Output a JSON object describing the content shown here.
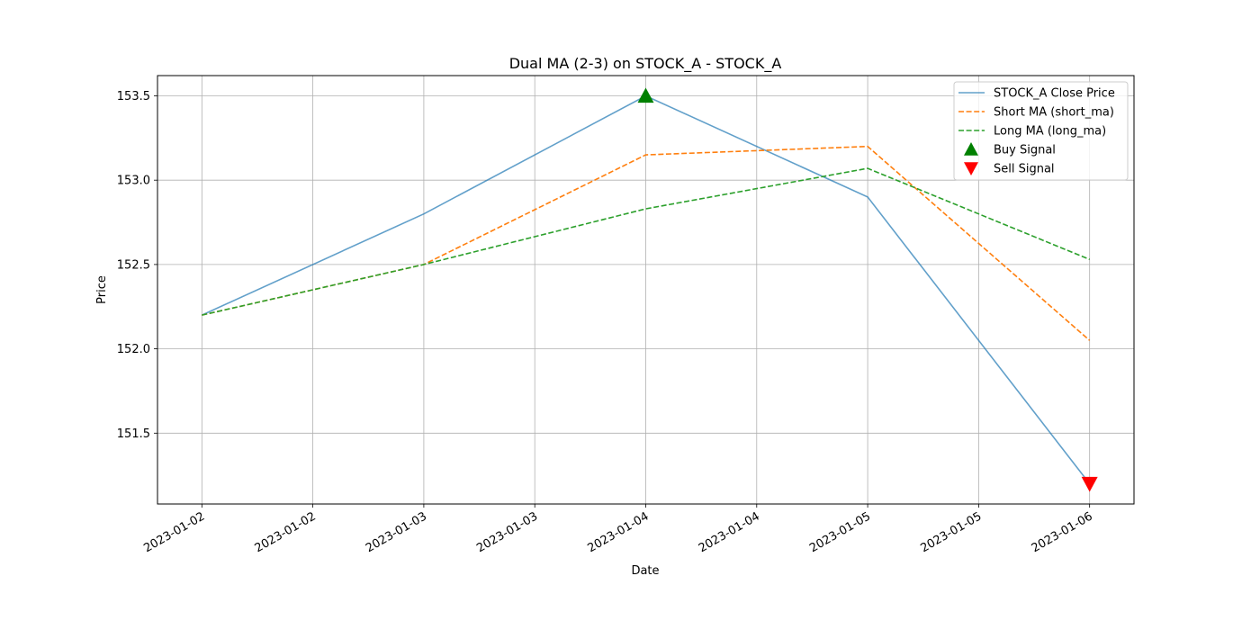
{
  "chart_data": {
    "type": "line",
    "title": "Dual MA (2-3) on STOCK_A - STOCK_A",
    "xlabel": "Date",
    "ylabel": "Price",
    "x": [
      0,
      1,
      2,
      3,
      4
    ],
    "x_tick_positions": [
      0,
      0.5,
      1,
      1.5,
      2,
      2.5,
      3,
      3.5,
      4
    ],
    "x_tick_labels": [
      "2023-01-02",
      "2023-01-02",
      "2023-01-03",
      "2023-01-03",
      "2023-01-04",
      "2023-01-04",
      "2023-01-05",
      "2023-01-05",
      "2023-01-06"
    ],
    "xlim": [
      -0.2,
      4.2
    ],
    "ylim": [
      151.08,
      153.62
    ],
    "y_ticks": [
      151.5,
      152.0,
      152.5,
      153.0,
      153.5
    ],
    "y_tick_labels": [
      "151.5",
      "152.0",
      "152.5",
      "153.0",
      "153.5"
    ],
    "grid": true,
    "legend_position": "top-right",
    "series": [
      {
        "name": "STOCK_A Close Price",
        "values": [
          152.2,
          152.8,
          153.5,
          152.9,
          151.2
        ],
        "color": "#1f77b4",
        "style": "solid",
        "alpha": 0.7
      },
      {
        "name": "Short MA (short_ma)",
        "values": [
          152.2,
          152.5,
          153.15,
          153.2,
          152.05
        ],
        "color": "#ff7f0e",
        "style": "dashed",
        "alpha": 1
      },
      {
        "name": "Long MA (long_ma)",
        "values": [
          152.2,
          152.5,
          152.83,
          153.07,
          152.53
        ],
        "color": "#2ca02c",
        "style": "dashed",
        "alpha": 1
      }
    ],
    "signals": [
      {
        "name": "Buy Signal",
        "marker": "triangle-up",
        "color": "#008000",
        "points": [
          {
            "x": 2,
            "y": 153.5
          }
        ]
      },
      {
        "name": "Sell Signal",
        "marker": "triangle-down",
        "color": "#ff0000",
        "points": [
          {
            "x": 4,
            "y": 151.2
          }
        ]
      }
    ]
  }
}
